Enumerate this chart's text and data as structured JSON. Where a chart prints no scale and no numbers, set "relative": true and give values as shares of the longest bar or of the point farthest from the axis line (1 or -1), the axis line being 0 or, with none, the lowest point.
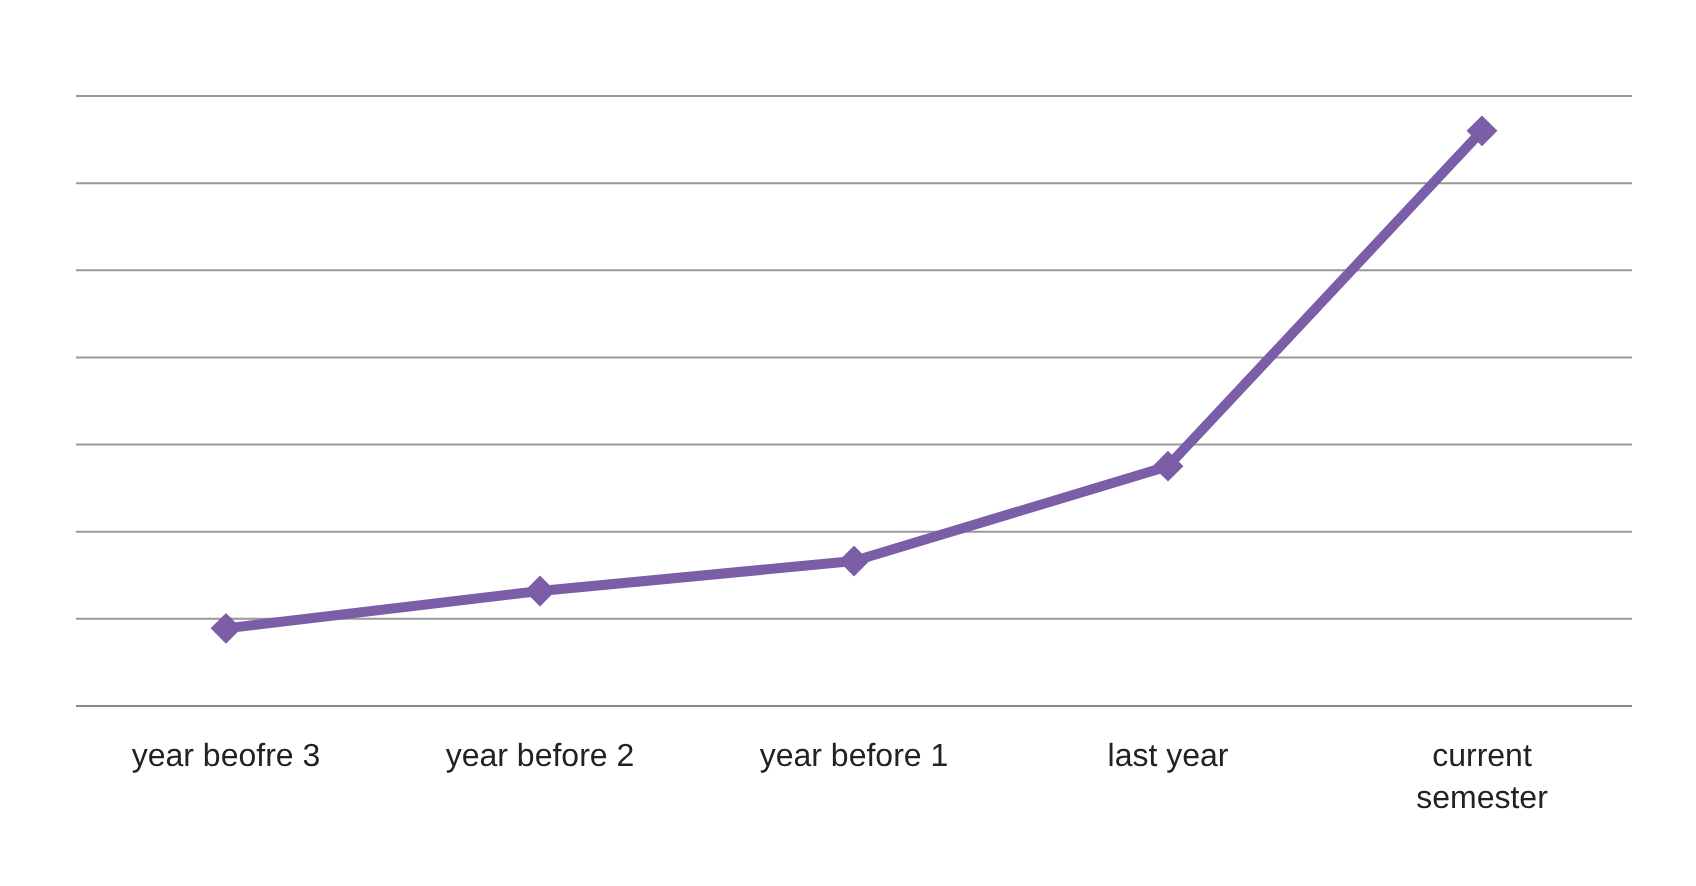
{
  "chart_data": {
    "type": "line",
    "relative": true,
    "categories": [
      "year beofre 3",
      "year before 2",
      "year before 1",
      "last year",
      "current semester"
    ],
    "series": [
      {
        "color": "#7b5ea7",
        "values": [
          0.135,
          0.2,
          0.252,
          0.417,
          1
        ]
      }
    ],
    "marker": "diamond",
    "line_style": "solid",
    "grid": "y"
  }
}
